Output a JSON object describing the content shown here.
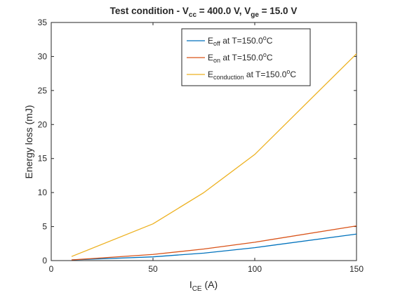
{
  "chart_data": {
    "type": "line",
    "title": {
      "prefix": "Test condition -  V",
      "vcc_sub": "cc",
      "vcc_value": " = 400.0 V, V",
      "vge_sub": "ge",
      "vge_value": " = 15.0 V"
    },
    "xlabel": {
      "main": "I",
      "sub": "CE",
      "unit": " (A)"
    },
    "ylabel": "Energy loss (mJ)",
    "xlim": [
      0,
      150
    ],
    "ylim": [
      0,
      35
    ],
    "xticks": [
      0,
      50,
      100,
      150
    ],
    "yticks": [
      0,
      5,
      10,
      15,
      20,
      25,
      30,
      35
    ],
    "grid": false,
    "legend_position": "top-right",
    "series": [
      {
        "name": "E_off at T=150.0°C",
        "label_main": "E",
        "label_sub": "off",
        "label_rest": " at T=150.0",
        "label_sup": "o",
        "label_end": "C",
        "color": "#0072BD",
        "x": [
          10,
          50,
          75,
          100,
          150
        ],
        "y": [
          0.1,
          0.55,
          1.1,
          1.9,
          3.9
        ]
      },
      {
        "name": "E_on at T=150.0°C",
        "label_main": "E",
        "label_sub": "on",
        "label_rest": " at T=150.0",
        "label_sup": "o",
        "label_end": "C",
        "color": "#D95319",
        "x": [
          10,
          50,
          75,
          100,
          150
        ],
        "y": [
          0.1,
          0.9,
          1.7,
          2.7,
          5.1
        ]
      },
      {
        "name": "E_conduction at T=150.0°C",
        "label_main": "E",
        "label_sub": "conduction",
        "label_rest": " at T=150.0",
        "label_sup": "o",
        "label_end": "C",
        "color": "#EDB120",
        "x": [
          10,
          50,
          75,
          100,
          150
        ],
        "y": [
          0.6,
          5.4,
          10.0,
          15.6,
          30.4
        ]
      }
    ]
  }
}
